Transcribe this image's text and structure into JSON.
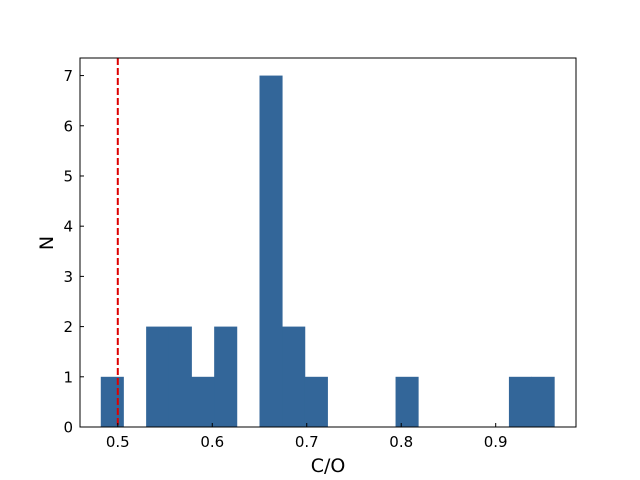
{
  "chart_data": {
    "type": "bar",
    "title": "",
    "xlabel": "C/O",
    "ylabel": "N",
    "xlim": [
      0.46,
      0.985
    ],
    "ylim": [
      0,
      7.35
    ],
    "grid": false,
    "bar_color": "#336699",
    "bin_width": 0.024,
    "bins": [
      {
        "left": 0.482,
        "count": 1
      },
      {
        "left": 0.506,
        "count": 0
      },
      {
        "left": 0.53,
        "count": 2
      },
      {
        "left": 0.554,
        "count": 2
      },
      {
        "left": 0.578,
        "count": 1
      },
      {
        "left": 0.602,
        "count": 2
      },
      {
        "left": 0.626,
        "count": 0
      },
      {
        "left": 0.65,
        "count": 7
      },
      {
        "left": 0.674,
        "count": 2
      },
      {
        "left": 0.698,
        "count": 1
      },
      {
        "left": 0.722,
        "count": 0
      },
      {
        "left": 0.746,
        "count": 0
      },
      {
        "left": 0.77,
        "count": 0
      },
      {
        "left": 0.794,
        "count": 1
      },
      {
        "left": 0.818,
        "count": 0
      },
      {
        "left": 0.842,
        "count": 0
      },
      {
        "left": 0.866,
        "count": 0
      },
      {
        "left": 0.89,
        "count": 0
      },
      {
        "left": 0.914,
        "count": 1
      },
      {
        "left": 0.938,
        "count": 1
      }
    ],
    "x_ticks": [
      {
        "value": 0.5,
        "label": "0.5"
      },
      {
        "value": 0.6,
        "label": "0.6"
      },
      {
        "value": 0.7,
        "label": "0.7"
      },
      {
        "value": 0.8,
        "label": "0.8"
      },
      {
        "value": 0.9,
        "label": "0.9"
      }
    ],
    "y_ticks": [
      {
        "value": 0,
        "label": "0"
      },
      {
        "value": 1,
        "label": "1"
      },
      {
        "value": 2,
        "label": "2"
      },
      {
        "value": 3,
        "label": "3"
      },
      {
        "value": 4,
        "label": "4"
      },
      {
        "value": 5,
        "label": "5"
      },
      {
        "value": 6,
        "label": "6"
      },
      {
        "value": 7,
        "label": "7"
      }
    ],
    "reference_line": {
      "x": 0.5,
      "color": "#dd0000",
      "style": "dashed"
    }
  }
}
